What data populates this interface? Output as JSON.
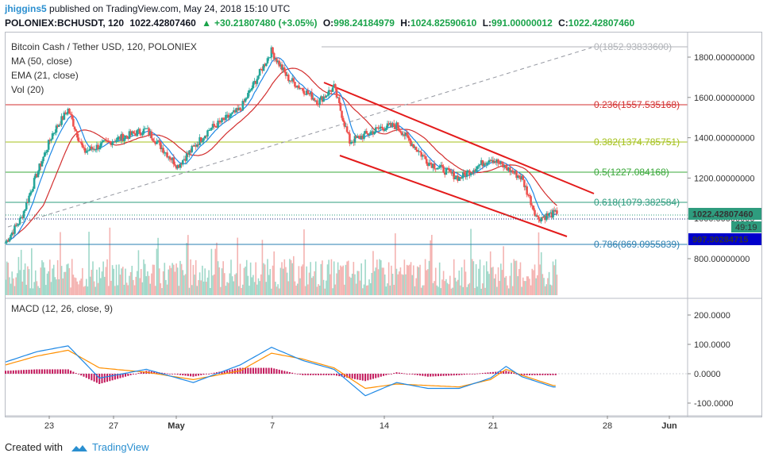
{
  "header": {
    "user": "jhiggins5",
    "published": "published on TradingView.com, May 24, 2018 15:10 UTC",
    "symbol": "POLONIEX:BCHUSDT, 120",
    "last": "1022.42807460",
    "change": "+30.21807480 (+3.05%)",
    "o_label": "O:",
    "o_value": "998.24184979",
    "h_label": "H:",
    "h_value": "1024.82590610",
    "l_label": "L:",
    "l_value": "991.00000012",
    "c_label": "C:",
    "c_value": "1022.42807460"
  },
  "legend": {
    "title": "Bitcoin Cash / Tether USD, 120, POLONIEX",
    "ma": "MA (50, close)",
    "ema": "EMA (21, close)",
    "vol": "Vol (20)",
    "macd": "MACD (12, 26, close, 9)"
  },
  "price_labels": {
    "last": "1022.42807460",
    "countdown": "49:19",
    "low_marker": "997.30284715"
  },
  "footer": {
    "created": "Created with",
    "brand": "TradingView"
  },
  "colors": {
    "up": "#26a69a",
    "down": "#ef5350",
    "channel": "#e31b1b",
    "ma": "#1e88e5",
    "ema": "#d32f2f",
    "macd": "#1e88e5",
    "signal": "#ff8f00",
    "hist": "#c2185b",
    "label_green": "#2e9c7e",
    "label_blue": "#0000cc"
  },
  "chart_data": [
    {
      "type": "candlestick",
      "title": "Bitcoin Cash / Tether USD, 120, POLONIEX",
      "x_ticks": [
        "23",
        "27",
        "May",
        "7",
        "14",
        "21",
        "28",
        "Jun"
      ],
      "y_ticks": [
        "800.00000000",
        "1000.00000000",
        "1200.00000000",
        "1400.00000000",
        "1600.00000000",
        "1800.00000000"
      ],
      "ylim": [
        700,
        1900
      ],
      "price_keypoints": [
        {
          "x": "Apr 19",
          "close": 880
        },
        {
          "x": "Apr 20",
          "close": 1000
        },
        {
          "x": "Apr 21",
          "close": 1220
        },
        {
          "x": "Apr 22",
          "close": 1420
        },
        {
          "x": "Apr 23",
          "close": 1540
        },
        {
          "x": "Apr 24",
          "close": 1330
        },
        {
          "x": "Apr 26",
          "close": 1390
        },
        {
          "x": "Apr 28",
          "close": 1440
        },
        {
          "x": "Apr 30",
          "close": 1260
        },
        {
          "x": "May 2",
          "close": 1440
        },
        {
          "x": "May 4",
          "close": 1540
        },
        {
          "x": "May 6",
          "close": 1830
        },
        {
          "x": "May 7",
          "close": 1700
        },
        {
          "x": "May 9",
          "close": 1580
        },
        {
          "x": "May 10",
          "close": 1650
        },
        {
          "x": "May 11",
          "close": 1380
        },
        {
          "x": "May 13",
          "close": 1450
        },
        {
          "x": "May 14",
          "close": 1460
        },
        {
          "x": "May 16",
          "close": 1280
        },
        {
          "x": "May 18",
          "close": 1200
        },
        {
          "x": "May 20",
          "close": 1300
        },
        {
          "x": "May 22",
          "close": 1200
        },
        {
          "x": "May 23",
          "close": 1000
        },
        {
          "x": "May 24",
          "close": 1022.43
        }
      ],
      "fibonacci": [
        {
          "level": "0",
          "price": "1852.93833600",
          "color": "#9598a1"
        },
        {
          "level": "0.236",
          "price": "1557.535168",
          "color": "#d32f2f"
        },
        {
          "level": "0.382",
          "price": "1374.785751",
          "color": "#9bb51b"
        },
        {
          "level": "0.5",
          "price": "1227.084168",
          "color": "#2e9c3f"
        },
        {
          "level": "0.618",
          "price": "1079.382584",
          "color": "#2e9c7e"
        },
        {
          "level": "0.786",
          "price": "869.0955839",
          "color": "#2a7fb0"
        }
      ],
      "indicators": [
        "MA (50, close)",
        "EMA (21, close)",
        "Vol (20)"
      ],
      "last_price": 1022.4280746
    },
    {
      "type": "line",
      "title": "MACD (12, 26, close, 9)",
      "y_ticks": [
        "-100.0000",
        "0.0000",
        "100.0000",
        "200.0000"
      ],
      "ylim": [
        -140,
        250
      ],
      "x": [
        "Apr 19",
        "Apr 21",
        "Apr 23",
        "Apr 25",
        "Apr 28",
        "May 1",
        "May 4",
        "May 6",
        "May 8",
        "May 10",
        "May 12",
        "May 14",
        "May 16",
        "May 18",
        "May 20",
        "May 21",
        "May 22",
        "May 24"
      ],
      "series": [
        {
          "name": "MACD",
          "values": [
            40,
            75,
            95,
            -15,
            15,
            -30,
            30,
            90,
            45,
            15,
            -75,
            -30,
            -50,
            -50,
            -15,
            25,
            -10,
            -45
          ]
        },
        {
          "name": "Signal",
          "values": [
            30,
            60,
            80,
            20,
            5,
            -20,
            10,
            70,
            50,
            20,
            -50,
            -35,
            -40,
            -45,
            -20,
            15,
            -5,
            -40
          ]
        }
      ]
    }
  ]
}
